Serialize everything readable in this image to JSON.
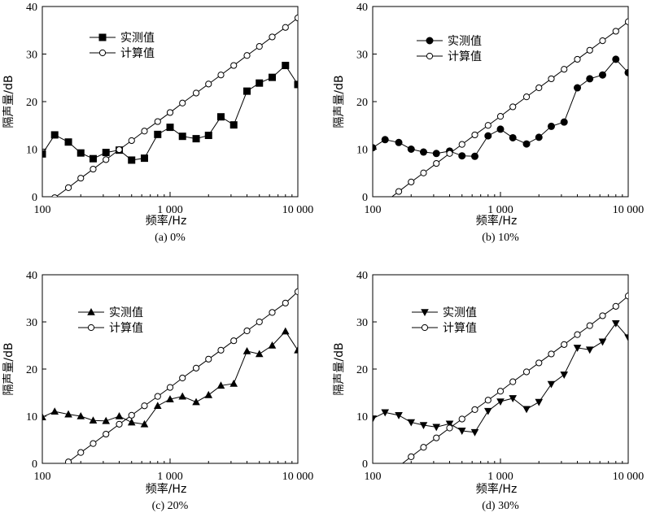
{
  "chart_data": [
    {
      "type": "line",
      "caption": "(a) 0%",
      "xlabel": "频率/Hz",
      "ylabel": "隔声量/dB",
      "xscale": "log",
      "xlim": [
        100,
        10000
      ],
      "ylim": [
        0,
        40
      ],
      "xticks": [
        100,
        1000,
        10000
      ],
      "xtick_labels": [
        "100",
        "1 000",
        "10 000"
      ],
      "yticks": [
        0,
        10,
        20,
        30,
        40
      ],
      "ytick_labels": [
        "0",
        "10",
        "20",
        "30",
        "40"
      ],
      "legend_position": "top-left",
      "series": [
        {
          "name": "实测值",
          "marker": "square-filled",
          "x": [
            100,
            125,
            160,
            200,
            250,
            315,
            400,
            500,
            630,
            800,
            1000,
            1250,
            1600,
            2000,
            2500,
            3150,
            4000,
            5000,
            6300,
            8000,
            10000
          ],
          "y": [
            9,
            13,
            11.5,
            9.2,
            8,
            9.3,
            9.8,
            7.7,
            8.1,
            13.1,
            14.6,
            12.7,
            12.2,
            12.9,
            16.8,
            15.1,
            22.2,
            23.9,
            25.1,
            27.6,
            23.6
          ]
        },
        {
          "name": "计算值",
          "marker": "circle-open",
          "x": [
            125,
            160,
            200,
            250,
            315,
            400,
            500,
            630,
            800,
            1000,
            1250,
            1600,
            2000,
            2500,
            3150,
            4000,
            5000,
            6300,
            8000,
            10000
          ],
          "y": [
            -0.2,
            1.9,
            3.9,
            5.8,
            7.8,
            9.9,
            11.8,
            13.8,
            15.8,
            17.7,
            19.7,
            21.8,
            23.7,
            25.6,
            27.6,
            29.7,
            31.6,
            33.6,
            35.6,
            37.6
          ]
        }
      ]
    },
    {
      "type": "line",
      "caption": "(b) 10%",
      "xlabel": "频率/Hz",
      "ylabel": "隔声量/dB",
      "xscale": "log",
      "xlim": [
        100,
        10000
      ],
      "ylim": [
        0,
        40
      ],
      "xticks": [
        100,
        1000,
        10000
      ],
      "xtick_labels": [
        "100",
        "1 000",
        "10 000"
      ],
      "yticks": [
        0,
        10,
        20,
        30,
        40
      ],
      "ytick_labels": [
        "0",
        "10",
        "20",
        "30",
        "40"
      ],
      "legend_position": "top-left",
      "series": [
        {
          "name": "实测值",
          "marker": "circle-filled",
          "x": [
            100,
            125,
            160,
            200,
            250,
            315,
            400,
            500,
            630,
            800,
            1000,
            1250,
            1600,
            2000,
            2500,
            3150,
            4000,
            5000,
            6300,
            8000,
            10000
          ],
          "y": [
            10.3,
            12,
            11.4,
            10,
            9.4,
            9.1,
            9.6,
            8.6,
            8.5,
            12.8,
            14.2,
            12.4,
            11.1,
            12.5,
            14.8,
            15.7,
            22.9,
            24.8,
            25.6,
            28.9,
            26.1
          ]
        },
        {
          "name": "计算值",
          "marker": "circle-open",
          "x": [
            160,
            200,
            250,
            315,
            400,
            500,
            630,
            800,
            1000,
            1250,
            1600,
            2000,
            2500,
            3150,
            4000,
            5000,
            6300,
            8000,
            10000
          ],
          "y": [
            1.1,
            3.1,
            5,
            7,
            9.1,
            11,
            13,
            15,
            16.9,
            18.9,
            21,
            22.9,
            24.8,
            26.8,
            28.9,
            30.8,
            32.8,
            34.8,
            36.8
          ]
        }
      ]
    },
    {
      "type": "line",
      "caption": "(c) 20%",
      "xlabel": "频率/Hz",
      "ylabel": "隔声量/dB",
      "xscale": "log",
      "xlim": [
        100,
        10000
      ],
      "ylim": [
        0,
        40
      ],
      "xticks": [
        100,
        1000,
        10000
      ],
      "xtick_labels": [
        "100",
        "1 000",
        "10 000"
      ],
      "yticks": [
        0,
        10,
        20,
        30,
        40
      ],
      "ytick_labels": [
        "0",
        "10",
        "20",
        "30",
        "40"
      ],
      "legend_position": "top-left",
      "series": [
        {
          "name": "实测值",
          "marker": "triangle-up-filled",
          "x": [
            100,
            125,
            160,
            200,
            250,
            315,
            400,
            500,
            630,
            800,
            1000,
            1250,
            1600,
            2000,
            2500,
            3150,
            4000,
            5000,
            6300,
            8000,
            10000
          ],
          "y": [
            9.8,
            11,
            10.4,
            10,
            9.1,
            9,
            10,
            8.7,
            8.3,
            12.2,
            13.6,
            14.2,
            13,
            14.5,
            16.5,
            16.9,
            23.8,
            23.2,
            25,
            28,
            24
          ]
        },
        {
          "name": "计算值",
          "marker": "circle-open",
          "x": [
            160,
            200,
            250,
            315,
            400,
            500,
            630,
            800,
            1000,
            1250,
            1600,
            2000,
            2500,
            3150,
            4000,
            5000,
            6300,
            8000,
            10000
          ],
          "y": [
            0.3,
            2.3,
            4.2,
            6.2,
            8.3,
            10.2,
            12.2,
            14.2,
            16.1,
            18.1,
            20.2,
            22.1,
            24,
            26,
            28.1,
            30,
            32,
            34,
            36.4
          ]
        }
      ]
    },
    {
      "type": "line",
      "caption": "(d) 30%",
      "xlabel": "频率/Hz",
      "ylabel": "隔声量/dB",
      "xscale": "log",
      "xlim": [
        100,
        10000
      ],
      "ylim": [
        0,
        40
      ],
      "xticks": [
        100,
        1000,
        10000
      ],
      "xtick_labels": [
        "100",
        "1 000",
        "10 000"
      ],
      "yticks": [
        0,
        10,
        20,
        30,
        40
      ],
      "ytick_labels": [
        "0",
        "10",
        "20",
        "30",
        "40"
      ],
      "legend_position": "top-left",
      "series": [
        {
          "name": "实测值",
          "marker": "triangle-down-filled",
          "x": [
            100,
            125,
            160,
            200,
            250,
            315,
            400,
            500,
            630,
            800,
            1000,
            1250,
            1600,
            2000,
            2500,
            3150,
            4000,
            5000,
            6300,
            8000,
            10000
          ],
          "y": [
            9.5,
            10.8,
            10.2,
            8.7,
            8.1,
            7.7,
            8.4,
            6.9,
            6.6,
            11.1,
            13.1,
            13.8,
            11.5,
            13,
            16.8,
            18.8,
            24.5,
            24.1,
            25.8,
            29.7,
            26.7
          ]
        },
        {
          "name": "计算值",
          "marker": "circle-open",
          "x": [
            200,
            250,
            315,
            400,
            500,
            630,
            800,
            1000,
            1250,
            1600,
            2000,
            2500,
            3150,
            4000,
            5000,
            6300,
            8000,
            10000
          ],
          "y": [
            1.4,
            3.4,
            5.4,
            7.5,
            9.4,
            11.4,
            13.4,
            15.3,
            17.3,
            19.4,
            21.3,
            23.2,
            25.2,
            27.3,
            29.2,
            31.3,
            33.3,
            35.5
          ]
        }
      ]
    }
  ]
}
